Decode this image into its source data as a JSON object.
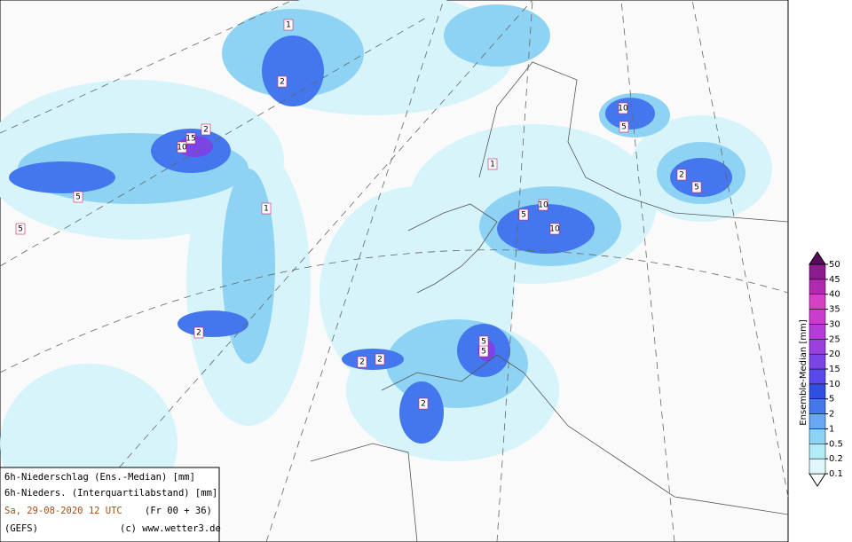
{
  "legend": {
    "title": "Ensemble-Median [mm]",
    "levels": [
      0.1,
      0.2,
      0.5,
      1,
      2,
      5,
      10,
      15,
      20,
      25,
      30,
      35,
      40,
      45,
      50
    ],
    "colors": [
      "#dff7fb",
      "#b2ecf6",
      "#8fd3f4",
      "#6aa8f2",
      "#4477ee",
      "#2f4fe0",
      "#5a48ea",
      "#7a44e6",
      "#9a3fe0",
      "#b63cd8",
      "#c93ccc",
      "#d640c4",
      "#b02ab0",
      "#8c1c8e"
    ],
    "under_color": "#ffffff",
    "over_color": "#5a0a5e"
  },
  "info": {
    "line1": "6h-Niederschlag (Ens.-Median) [mm]",
    "line2": "6h-Nieders. (Interquartilabstand) [mm]",
    "date": "Sa, 29-08-2020  12 UTC",
    "run": "(Fr 00 + 36)",
    "model": "(GEFS)",
    "copyright": "(c) www.wetter3.de"
  },
  "contour_labels": [
    2,
    15,
    10,
    1,
    2,
    5,
    5,
    5,
    5,
    5,
    10,
    10,
    10,
    5,
    2,
    2,
    2,
    2,
    1,
    1,
    5,
    2
  ]
}
